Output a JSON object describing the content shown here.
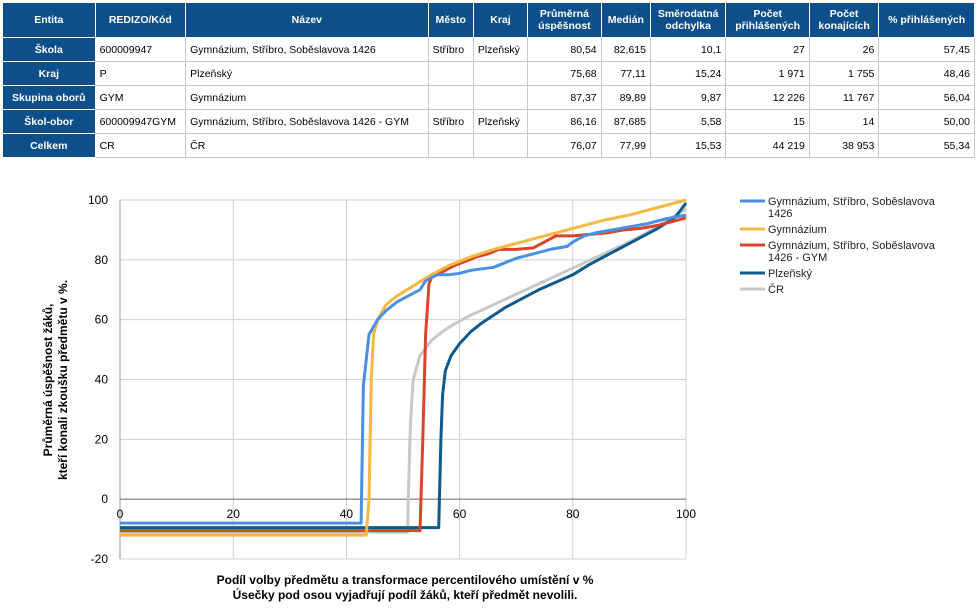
{
  "table": {
    "headers": [
      "Entita",
      "REDIZO/Kód",
      "Název",
      "Město",
      "Kraj",
      "Průměrná úspěšnost",
      "Medián",
      "Směrodatná odchylka",
      "Počet přihlášených",
      "Počet konajících",
      "% přihlášených"
    ],
    "rows": [
      [
        "Škola",
        "600009947",
        "Gymnázium, Stříbro, Soběslavova 1426",
        "Stříbro",
        "Plzeňský",
        "80,54",
        "82,615",
        "10,1",
        "27",
        "26",
        "57,45"
      ],
      [
        "Kraj",
        "P",
        "Plzeňský",
        "",
        "",
        "75,68",
        "77,11",
        "15,24",
        "1 971",
        "1 755",
        "48,46"
      ],
      [
        "Skupina oborů",
        "GYM",
        "Gymnázium",
        "",
        "",
        "87,37",
        "89,89",
        "9,87",
        "12 226",
        "11 767",
        "56,04"
      ],
      [
        "Škol-obor",
        "600009947GYM",
        "Gymnázium, Stříbro, Soběslavova 1426 - GYM",
        "Stříbro",
        "Plzeňský",
        "86,16",
        "87,685",
        "5,58",
        "15",
        "14",
        "50,00"
      ],
      [
        "Celkem",
        "CR",
        "ČR",
        "",
        "",
        "76,07",
        "77,99",
        "15,53",
        "44 219",
        "38 953",
        "55,34"
      ]
    ]
  },
  "chart_data": {
    "type": "line",
    "xlabel": "Podíl volby předmětu a transformace percentilového umístění v %",
    "xlabel2": "Úsečky pod osou vyjadřují podíl žáků, kteří předmět nevolili.",
    "ylabel": "Průměrná úspěšnost žáků,",
    "ylabel2": "kteří konali zkoušku předmětu v %.",
    "xlim": [
      0,
      100
    ],
    "ylim": [
      -20,
      100
    ],
    "xticks": [
      0,
      20,
      40,
      60,
      80,
      100
    ],
    "yticks": [
      -20,
      0,
      20,
      40,
      60,
      80,
      100
    ],
    "grid": true,
    "legend_position": "right",
    "series": [
      {
        "name": "Gymnázium, Stříbro, Soběslavova 1426",
        "color": "#4a90e2",
        "points": [
          [
            0,
            -8
          ],
          [
            42.6,
            -8
          ],
          [
            43,
            38
          ],
          [
            44,
            55
          ],
          [
            45.5,
            60
          ],
          [
            47,
            63
          ],
          [
            49,
            66
          ],
          [
            51,
            68
          ],
          [
            53,
            70
          ],
          [
            54,
            73
          ],
          [
            55,
            74
          ],
          [
            56,
            75
          ],
          [
            58,
            75
          ],
          [
            60,
            75.5
          ],
          [
            62,
            76.5
          ],
          [
            66,
            77.5
          ],
          [
            68,
            79
          ],
          [
            70,
            80.5
          ],
          [
            73,
            82
          ],
          [
            76,
            83.5
          ],
          [
            79,
            84.5
          ],
          [
            80,
            86
          ],
          [
            82,
            88
          ],
          [
            84,
            89
          ],
          [
            87,
            90
          ],
          [
            90,
            91
          ],
          [
            93,
            92
          ],
          [
            96,
            93.5
          ],
          [
            100,
            95
          ]
        ]
      },
      {
        "name": "Gymnázium",
        "color": "#f5b942",
        "points": [
          [
            0,
            -12
          ],
          [
            43.5,
            -12
          ],
          [
            44,
            0
          ],
          [
            44.4,
            40
          ],
          [
            44.8,
            55
          ],
          [
            45.5,
            60
          ],
          [
            47,
            65
          ],
          [
            49,
            68
          ],
          [
            52,
            71.5
          ],
          [
            55,
            75
          ],
          [
            58,
            78
          ],
          [
            62,
            81
          ],
          [
            66,
            83.5
          ],
          [
            70,
            85.5
          ],
          [
            75,
            88
          ],
          [
            80,
            90.5
          ],
          [
            85,
            93
          ],
          [
            90,
            95
          ],
          [
            95,
            97.5
          ],
          [
            100,
            100
          ]
        ]
      },
      {
        "name": "Gymnázium, Stříbro, Soběslavova 1426 - GYM",
        "color": "#d9442a",
        "points": [
          [
            0,
            -10.5
          ],
          [
            53,
            -10.5
          ],
          [
            53.5,
            20
          ],
          [
            54,
            55
          ],
          [
            54.6,
            72
          ],
          [
            55.2,
            75
          ],
          [
            57,
            76
          ],
          [
            59,
            78
          ],
          [
            61,
            79.5
          ],
          [
            63,
            81
          ],
          [
            65,
            82
          ],
          [
            67,
            83.5
          ],
          [
            70,
            83.5
          ],
          [
            73,
            84
          ],
          [
            75,
            86
          ],
          [
            77,
            88
          ],
          [
            80,
            88
          ],
          [
            83,
            88.5
          ],
          [
            86,
            89
          ],
          [
            89,
            90
          ],
          [
            92,
            90.5
          ],
          [
            95,
            91.5
          ],
          [
            97,
            92.5
          ],
          [
            100,
            94
          ]
        ]
      },
      {
        "name": "Plzeňský",
        "color": "#0e5a8a",
        "points": [
          [
            0,
            -9.5
          ],
          [
            50.5,
            -9.5
          ],
          [
            56.3,
            -9.5
          ],
          [
            56.5,
            5
          ],
          [
            56.7,
            20
          ],
          [
            57,
            35
          ],
          [
            57.5,
            43
          ],
          [
            58.5,
            48
          ],
          [
            60,
            52
          ],
          [
            62,
            56
          ],
          [
            64,
            59
          ],
          [
            66,
            61.5
          ],
          [
            68,
            64
          ],
          [
            71,
            67
          ],
          [
            74,
            70
          ],
          [
            77,
            72.5
          ],
          [
            80,
            75
          ],
          [
            83,
            78.5
          ],
          [
            86,
            81.5
          ],
          [
            89,
            84.5
          ],
          [
            92,
            87.5
          ],
          [
            95,
            90.5
          ],
          [
            98,
            94
          ],
          [
            100,
            99
          ]
        ]
      },
      {
        "name": "ČR",
        "color": "#c8c8c8",
        "points": [
          [
            0,
            -11
          ],
          [
            50.8,
            -11
          ],
          [
            51,
            5
          ],
          [
            51.3,
            25
          ],
          [
            51.8,
            40
          ],
          [
            53,
            48
          ],
          [
            55,
            53
          ],
          [
            57,
            56
          ],
          [
            59,
            58.5
          ],
          [
            62,
            61.5
          ],
          [
            66,
            65
          ],
          [
            70,
            68.5
          ],
          [
            74,
            72
          ],
          [
            78,
            75.5
          ],
          [
            82,
            79
          ],
          [
            86,
            82.5
          ],
          [
            90,
            86
          ],
          [
            94,
            90
          ],
          [
            97,
            93.5
          ],
          [
            100,
            97
          ]
        ]
      }
    ]
  }
}
